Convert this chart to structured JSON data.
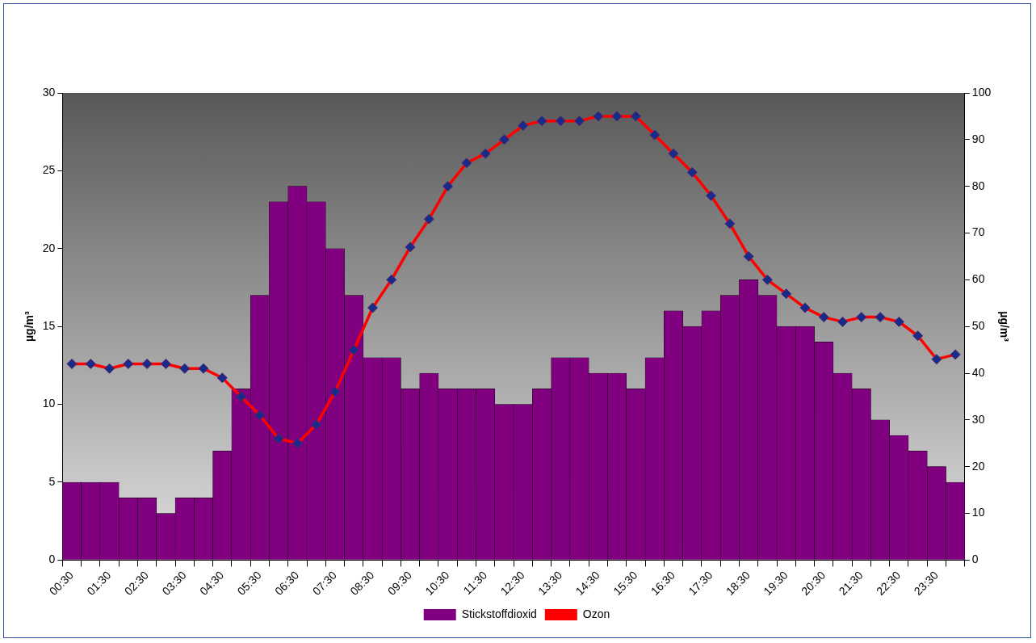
{
  "chart_data": {
    "type": "bar",
    "ylabel": "µg/m³",
    "y2label": "µg/m³",
    "categories": [
      "00:30",
      null,
      "01:30",
      null,
      "02:30",
      null,
      "03:30",
      null,
      "04:30",
      null,
      "05:30",
      null,
      "06:30",
      null,
      "07:30",
      null,
      "08:30",
      null,
      "09:30",
      null,
      "10:30",
      null,
      "11:30",
      null,
      "12:30",
      null,
      "13:30",
      null,
      "14:30",
      null,
      "15:30",
      null,
      "16:30",
      null,
      "17:30",
      null,
      "18:30",
      null,
      "19:30",
      null,
      "20:30",
      null,
      "21:30",
      null,
      "22:30",
      null,
      "23:30",
      null
    ],
    "series": [
      {
        "name": "Stickstoffdioxid",
        "color": "#800080",
        "values": [
          5,
          5,
          5,
          4,
          4,
          3,
          4,
          4,
          7,
          11,
          17,
          23,
          24,
          23,
          20,
          17,
          13,
          13,
          11,
          12,
          11,
          11,
          11,
          10,
          10,
          11,
          13,
          13,
          12,
          12,
          11,
          13,
          16,
          15,
          16,
          17,
          18,
          17,
          15,
          15,
          14,
          12,
          11,
          9,
          8,
          7,
          6,
          5
        ]
      },
      {
        "name": "Ozon",
        "type": "line",
        "axis": "y2",
        "color": "#ff0000",
        "values": [
          42,
          42,
          41,
          42,
          42,
          42,
          41,
          41,
          39,
          35,
          31,
          26,
          25,
          29,
          36,
          45,
          54,
          60,
          67,
          73,
          80,
          85,
          87,
          90,
          93,
          94,
          94,
          94,
          95,
          95,
          95,
          91,
          87,
          83,
          78,
          72,
          65,
          60,
          57,
          54,
          52,
          51,
          52,
          52,
          51,
          48,
          43,
          44
        ]
      }
    ],
    "ylim": [
      0,
      30
    ],
    "yticks": [
      0,
      5,
      10,
      15,
      20,
      25,
      30
    ],
    "y2lim": [
      0,
      100
    ],
    "y2ticks": [
      0,
      10,
      20,
      30,
      40,
      50,
      60,
      70,
      80,
      90,
      100
    ],
    "legend": "bottom",
    "grid": false,
    "marker": "diamond"
  }
}
